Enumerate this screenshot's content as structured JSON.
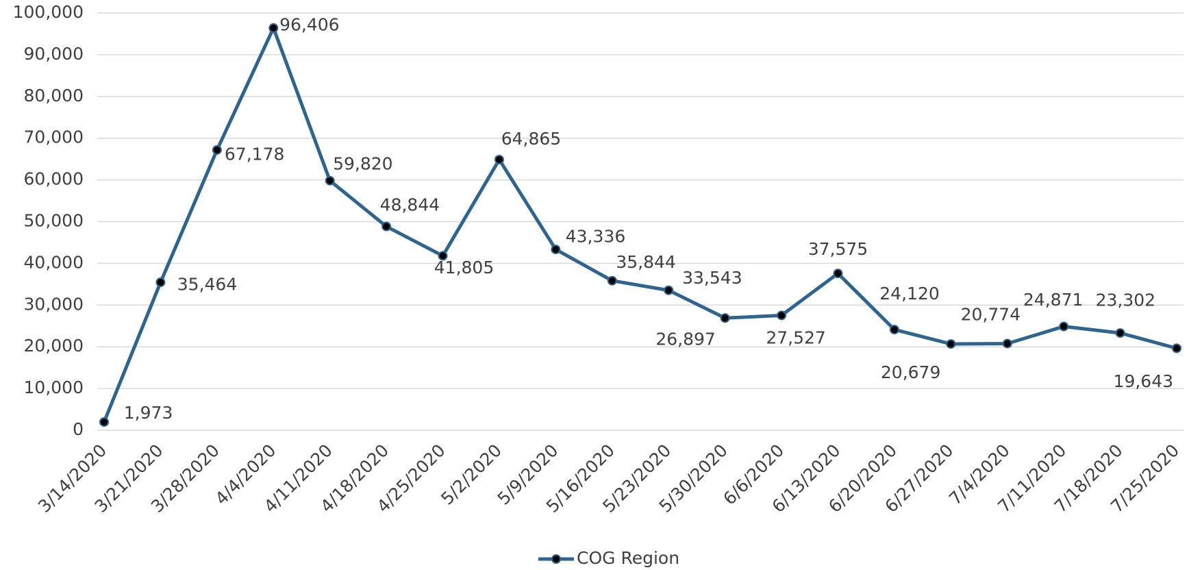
{
  "chart_data": {
    "type": "line",
    "x": [
      "3/14/2020",
      "3/21/2020",
      "3/28/2020",
      "4/4/2020",
      "4/11/2020",
      "4/18/2020",
      "4/25/2020",
      "5/2/2020",
      "5/9/2020",
      "5/16/2020",
      "5/23/2020",
      "5/30/2020",
      "6/6/2020",
      "6/13/2020",
      "6/20/2020",
      "6/27/2020",
      "7/4/2020",
      "7/11/2020",
      "7/18/2020",
      "7/25/2020"
    ],
    "series": [
      {
        "name": "COG Region",
        "color": "#2e6590",
        "values": [
          1973,
          35464,
          67178,
          96406,
          59820,
          48844,
          41805,
          64865,
          43336,
          35844,
          33543,
          26897,
          27527,
          37575,
          24120,
          20679,
          20774,
          24871,
          23302,
          19643
        ],
        "value_labels": [
          "1,973",
          "35,464",
          "67,178",
          "96,406",
          "59,820",
          "48,844",
          "41,805",
          "64,865",
          "43,336",
          "35,844",
          "33,543",
          "26,897",
          "27,527",
          "37,575",
          "24,120",
          "20,679",
          "20,774",
          "24,871",
          "23,302",
          "19,643"
        ]
      }
    ],
    "ylim": [
      0,
      100000
    ],
    "yticks": [
      0,
      {
        "value": 10000,
        "label": "10,000"
      },
      {
        "value": 20000,
        "label": "20,000"
      },
      {
        "value": 30000,
        "label": "30,000"
      },
      {
        "value": 40000,
        "label": "40,000"
      },
      {
        "value": 50000,
        "label": "50,000"
      },
      {
        "value": 60000,
        "label": "60,000"
      },
      {
        "value": 70000,
        "label": "70,000"
      },
      {
        "value": 80000,
        "label": "80,000"
      },
      {
        "value": 90000,
        "label": "90,000"
      },
      {
        "value": 100000,
        "label": "100,000"
      }
    ],
    "grid": true,
    "legend": "bottom"
  }
}
